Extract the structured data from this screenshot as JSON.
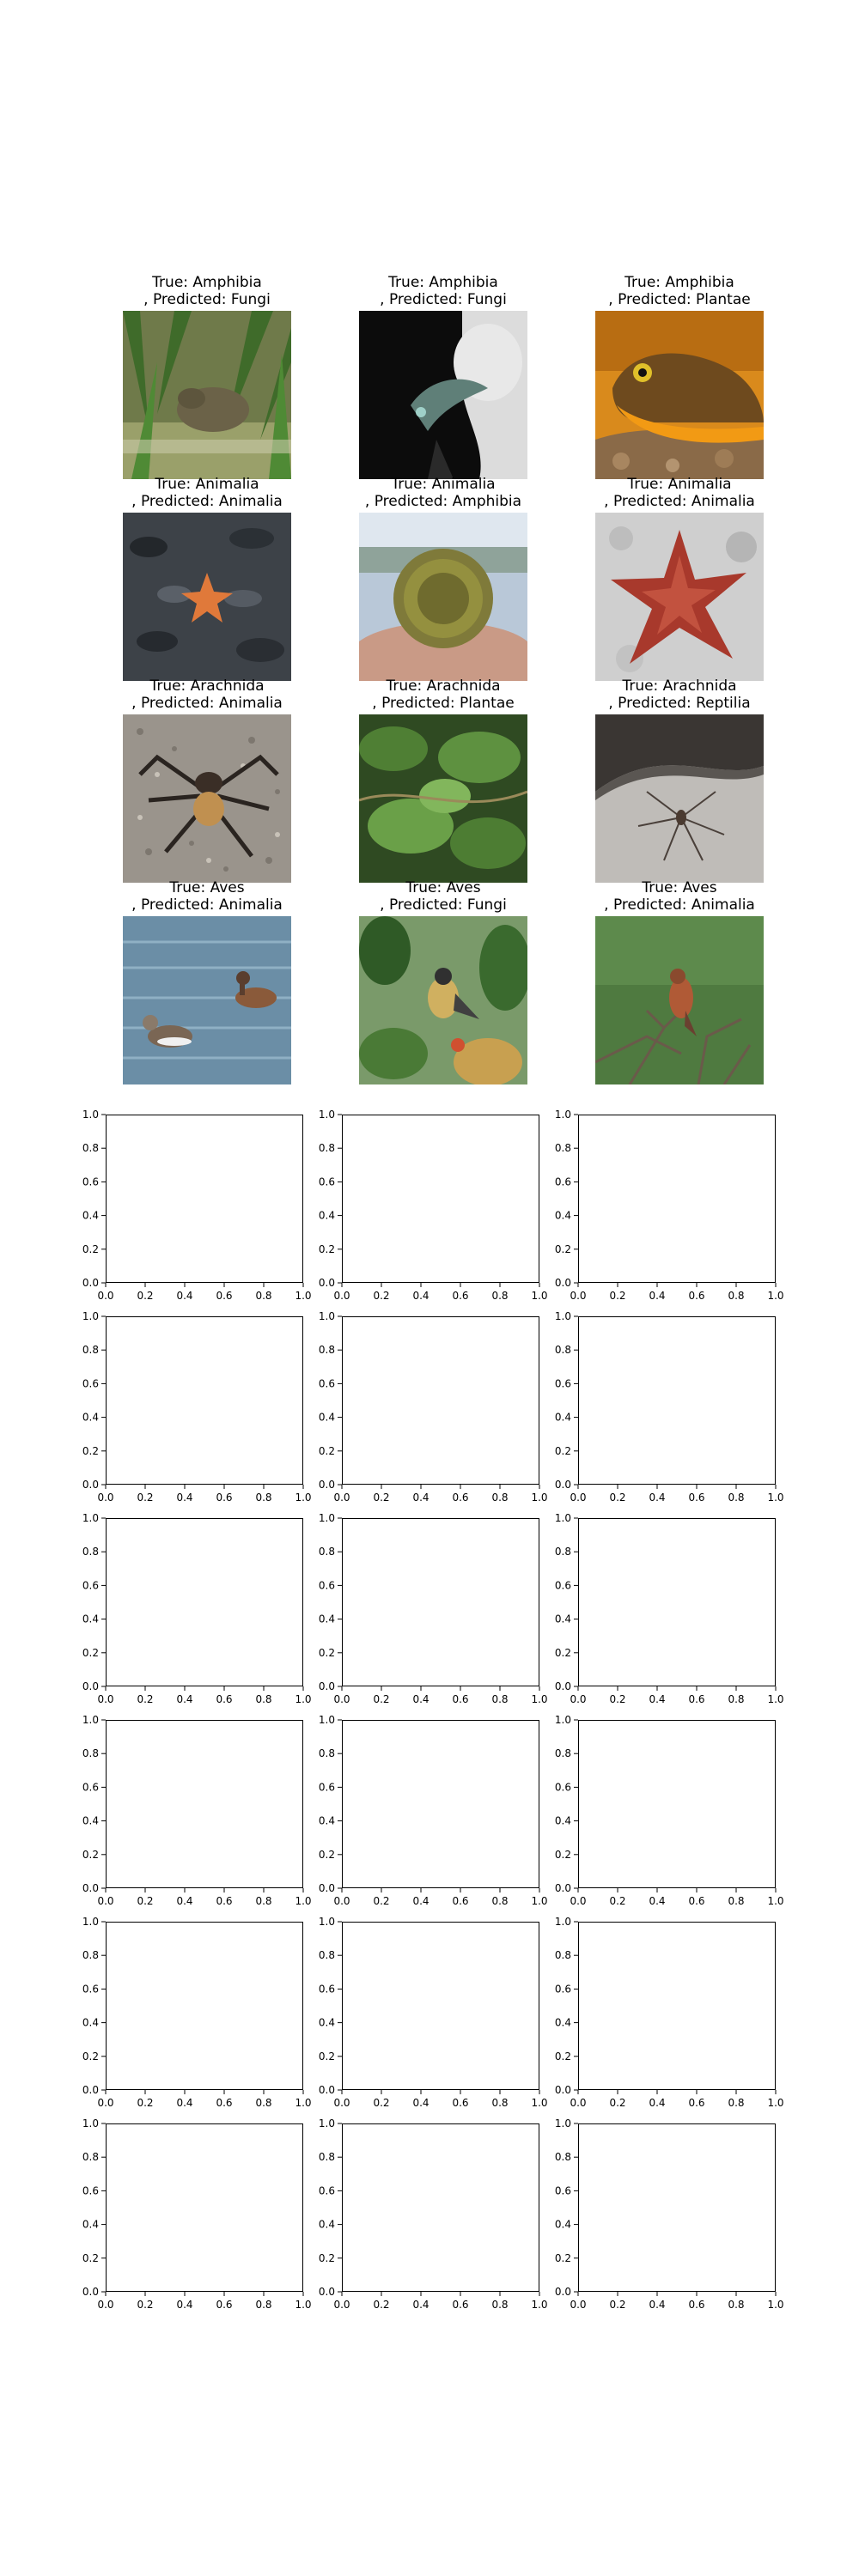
{
  "chart_data": {
    "type": "image-grid",
    "grid": {
      "rows": 10,
      "cols": 3
    },
    "image_panels": [
      {
        "true_label": "True: Amphibia",
        "predicted_label": ", Predicted: Fungi",
        "icon": "frog-in-grass-photo"
      },
      {
        "true_label": "True: Amphibia",
        "predicted_label": ", Predicted: Fungi",
        "icon": "salamander-in-hand-photo"
      },
      {
        "true_label": "True: Amphibia",
        "predicted_label": ", Predicted: Plantae",
        "icon": "orange-newt-photo"
      },
      {
        "true_label": "True: Animalia",
        "predicted_label": ", Predicted: Animalia",
        "icon": "starfish-on-mussels-photo"
      },
      {
        "true_label": "True: Animalia",
        "predicted_label": ", Predicted: Amphibia",
        "icon": "sea-urchin-in-hand-photo"
      },
      {
        "true_label": "True: Animalia",
        "predicted_label": ", Predicted: Animalia",
        "icon": "red-starfish-photo"
      },
      {
        "true_label": "True: Arachnida",
        "predicted_label": ", Predicted: Animalia",
        "icon": "spider-on-gravel-photo"
      },
      {
        "true_label": "True: Arachnida",
        "predicted_label": ", Predicted: Plantae",
        "icon": "green-leaves-photo"
      },
      {
        "true_label": "True: Arachnida",
        "predicted_label": ", Predicted: Reptilia",
        "icon": "spider-on-rock-photo"
      },
      {
        "true_label": "True: Aves",
        "predicted_label": ", Predicted: Animalia",
        "icon": "ducks-on-water-photo"
      },
      {
        "true_label": "True: Aves",
        "predicted_label": ", Predicted: Fungi",
        "icon": "bird-in-leaves-photo"
      },
      {
        "true_label": "True: Aves",
        "predicted_label": ", Predicted: Animalia",
        "icon": "bird-on-branch-photo"
      }
    ],
    "empty_axes": {
      "count": 18,
      "xlim": [
        0.0,
        1.0
      ],
      "ylim": [
        0.0,
        1.0
      ],
      "xticks": [
        "0.0",
        "0.2",
        "0.4",
        "0.6",
        "0.8",
        "1.0"
      ],
      "yticks": [
        "0.0",
        "0.2",
        "0.4",
        "0.6",
        "0.8",
        "1.0"
      ]
    }
  }
}
